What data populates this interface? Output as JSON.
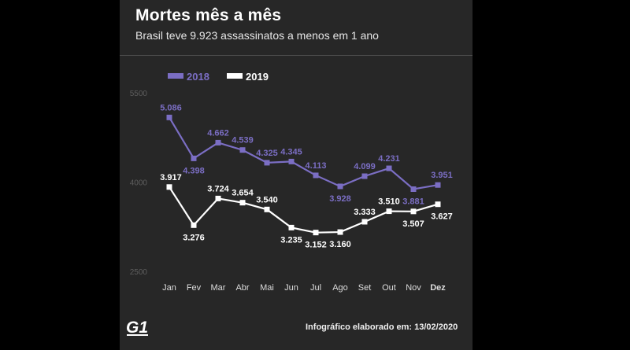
{
  "header": {
    "title": "Mortes mês a mês",
    "subtitle": "Brasil teve 9.923 assassinatos a menos em 1 ano"
  },
  "footer": {
    "logo_text": "G1",
    "credit": "Infográfico elaborado em: 13/02/2020"
  },
  "chart_data": {
    "type": "line",
    "categories": [
      "Jan",
      "Fev",
      "Mar",
      "Abr",
      "Mai",
      "Jun",
      "Jul",
      "Ago",
      "Set",
      "Out",
      "Nov",
      "Dez"
    ],
    "series": [
      {
        "name": "2018",
        "color": "#7b6ec4",
        "values": [
          5086,
          4398,
          4662,
          4539,
          4325,
          4345,
          4113,
          3928,
          4099,
          4231,
          3881,
          3951
        ],
        "labels": [
          "5.086",
          "4.398",
          "4.662",
          "4.539",
          "4.325",
          "4.345",
          "4.113",
          "3.928",
          "4.099",
          "4.231",
          "3.881",
          "3.951"
        ]
      },
      {
        "name": "2019",
        "color": "#ffffff",
        "values": [
          3917,
          3276,
          3724,
          3654,
          3540,
          3235,
          3152,
          3160,
          3333,
          3510,
          3507,
          3627
        ],
        "labels": [
          "3.917",
          "3.276",
          "3.724",
          "3.654",
          "3.540",
          "3.235",
          "3.152",
          "3.160",
          "3.333",
          "3.510",
          "3.507",
          "3.627"
        ]
      }
    ],
    "y_ticks": [
      "5500",
      "4000",
      "2500"
    ],
    "ylim": [
      2500,
      5500
    ],
    "legend_position": "top-left",
    "grid": false
  }
}
